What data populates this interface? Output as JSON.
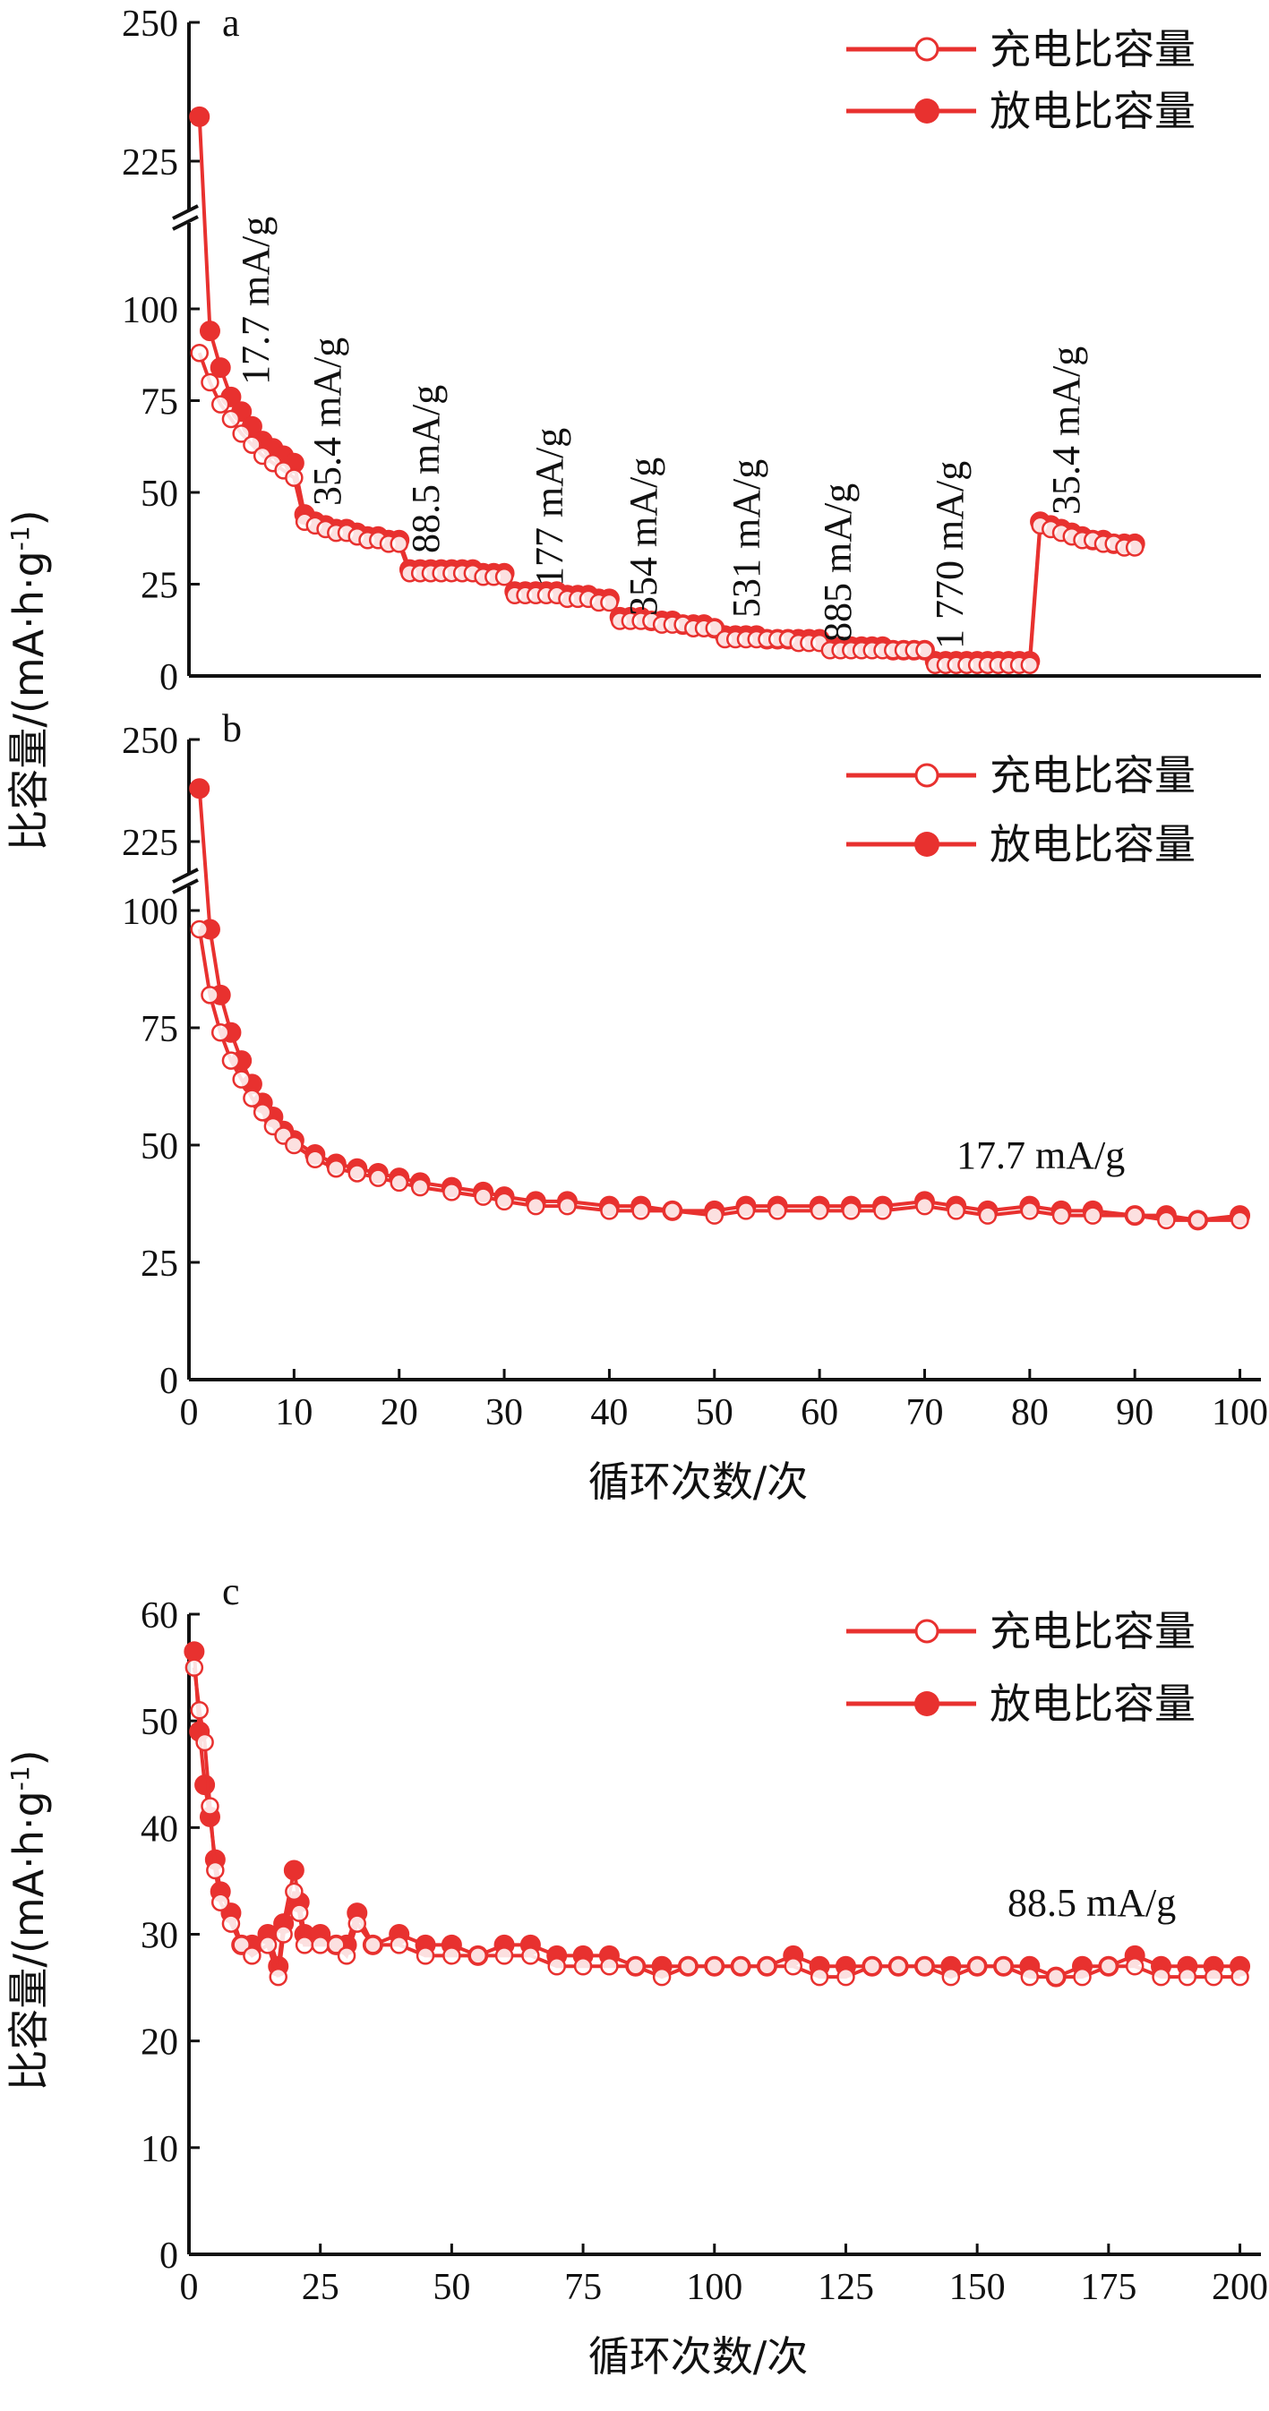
{
  "colors": {
    "series": "#e8312f",
    "axis": "#111111",
    "open_fill": "#ffffff"
  },
  "y_axis_title_top": "比容量/(mA·h·g",
  "y_axis_title_sup": "-1",
  "y_axis_title_close": ")",
  "chart_data": [
    {
      "id": "a",
      "type": "line",
      "panel_label": "a",
      "ylim": [
        0,
        250
      ],
      "y_break": [
        100,
        225
      ],
      "yticks": [
        0,
        25,
        50,
        75,
        100,
        225,
        250
      ],
      "xlim": [
        0,
        102
      ],
      "show_xticks": false,
      "legend": [
        "充电比容量",
        "放电比容量"
      ],
      "annotations": [
        "17.7 mA/g",
        "35.4 mA/g",
        "88.5 mA/g",
        "177 mA/g",
        "354 mA/g",
        "531 mA/g",
        "885 mA/g",
        "1 770 mA/g",
        "35.4 mA/g"
      ],
      "annotation_x": [
        10,
        18,
        25,
        35,
        44,
        53,
        62,
        74,
        86
      ],
      "series": [
        {
          "name": "放电比容量",
          "marker": "filled",
          "x": [
            1,
            2,
            3,
            4,
            5,
            6,
            7,
            8,
            9,
            10,
            11,
            12,
            13,
            14,
            15,
            16,
            17,
            18,
            19,
            20,
            21,
            22,
            23,
            24,
            25,
            26,
            27,
            28,
            29,
            30,
            31,
            32,
            33,
            34,
            35,
            36,
            37,
            38,
            39,
            40,
            41,
            42,
            43,
            44,
            45,
            46,
            47,
            48,
            49,
            50,
            51,
            52,
            53,
            54,
            55,
            56,
            57,
            58,
            59,
            60,
            61,
            62,
            63,
            64,
            65,
            66,
            67,
            68,
            69,
            70,
            71,
            72,
            73,
            74,
            75,
            76,
            77,
            78,
            79,
            80,
            81,
            82,
            83,
            84,
            85,
            86,
            87,
            88,
            89,
            90
          ],
          "y": [
            233,
            94,
            84,
            76,
            72,
            68,
            64,
            62,
            60,
            58,
            44,
            42,
            41,
            40,
            40,
            39,
            38,
            38,
            37,
            37,
            29,
            29,
            29,
            29,
            29,
            29,
            29,
            28,
            28,
            28,
            23,
            23,
            23,
            23,
            23,
            22,
            22,
            22,
            21,
            21,
            16,
            16,
            16,
            15,
            15,
            15,
            14,
            14,
            14,
            13,
            11,
            11,
            11,
            11,
            10,
            10,
            10,
            10,
            10,
            10,
            8,
            8,
            8,
            8,
            8,
            8,
            7,
            7,
            7,
            7,
            4,
            4,
            4,
            4,
            4,
            4,
            4,
            4,
            4,
            4,
            42,
            41,
            40,
            39,
            38,
            37,
            37,
            36,
            36,
            36
          ]
        },
        {
          "name": "充电比容量",
          "marker": "open",
          "x": [
            1,
            2,
            3,
            4,
            5,
            6,
            7,
            8,
            9,
            10,
            11,
            12,
            13,
            14,
            15,
            16,
            17,
            18,
            19,
            20,
            21,
            22,
            23,
            24,
            25,
            26,
            27,
            28,
            29,
            30,
            31,
            32,
            33,
            34,
            35,
            36,
            37,
            38,
            39,
            40,
            41,
            42,
            43,
            44,
            45,
            46,
            47,
            48,
            49,
            50,
            51,
            52,
            53,
            54,
            55,
            56,
            57,
            58,
            59,
            60,
            61,
            62,
            63,
            64,
            65,
            66,
            67,
            68,
            69,
            70,
            71,
            72,
            73,
            74,
            75,
            76,
            77,
            78,
            79,
            80,
            81,
            82,
            83,
            84,
            85,
            86,
            87,
            88,
            89,
            90
          ],
          "y": [
            88,
            80,
            74,
            70,
            66,
            63,
            60,
            58,
            56,
            54,
            42,
            41,
            40,
            39,
            39,
            38,
            37,
            37,
            36,
            36,
            28,
            28,
            28,
            28,
            28,
            28,
            28,
            27,
            27,
            27,
            22,
            22,
            22,
            22,
            22,
            21,
            21,
            21,
            20,
            20,
            15,
            15,
            15,
            15,
            14,
            14,
            14,
            13,
            13,
            13,
            10,
            10,
            10,
            10,
            10,
            10,
            10,
            9,
            9,
            9,
            7,
            7,
            7,
            7,
            7,
            7,
            7,
            7,
            7,
            7,
            3,
            3,
            3,
            3,
            3,
            3,
            3,
            3,
            3,
            3,
            41,
            40,
            39,
            38,
            37,
            37,
            36,
            36,
            35,
            35
          ]
        }
      ]
    },
    {
      "id": "b",
      "type": "line",
      "panel_label": "b",
      "ylim": [
        0,
        250
      ],
      "y_break": [
        100,
        225
      ],
      "yticks": [
        0,
        25,
        50,
        75,
        100,
        225,
        250
      ],
      "xlim": [
        0,
        102
      ],
      "xticks": [
        0,
        10,
        20,
        30,
        40,
        50,
        60,
        70,
        80,
        90,
        100
      ],
      "show_xticks": true,
      "xlabel": "循环次数/次",
      "legend": [
        "充电比容量",
        "放电比容量"
      ],
      "annotations": [
        "17.7 mA/g"
      ],
      "annotation_x": [
        80
      ],
      "annotation_y": [
        57
      ],
      "series": [
        {
          "name": "放电比容量",
          "marker": "filled",
          "x": [
            1,
            2,
            3,
            4,
            5,
            6,
            7,
            8,
            9,
            10,
            12,
            14,
            16,
            18,
            20,
            22,
            25,
            28,
            30,
            33,
            36,
            40,
            43,
            46,
            50,
            53,
            56,
            60,
            63,
            66,
            70,
            73,
            76,
            80,
            83,
            86,
            90,
            93,
            96,
            100
          ],
          "y": [
            238,
            96,
            82,
            74,
            68,
            63,
            59,
            56,
            53,
            51,
            48,
            46,
            45,
            44,
            43,
            42,
            41,
            40,
            39,
            38,
            38,
            37,
            37,
            36,
            36,
            37,
            37,
            37,
            37,
            37,
            38,
            37,
            36,
            37,
            36,
            36,
            35,
            35,
            34,
            35
          ]
        },
        {
          "name": "充电比容量",
          "marker": "open",
          "x": [
            1,
            2,
            3,
            4,
            5,
            6,
            7,
            8,
            9,
            10,
            12,
            14,
            16,
            18,
            20,
            22,
            25,
            28,
            30,
            33,
            36,
            40,
            43,
            46,
            50,
            53,
            56,
            60,
            63,
            66,
            70,
            73,
            76,
            80,
            83,
            86,
            90,
            93,
            96,
            100
          ],
          "y": [
            96,
            82,
            74,
            68,
            64,
            60,
            57,
            54,
            52,
            50,
            47,
            45,
            44,
            43,
            42,
            41,
            40,
            39,
            38,
            37,
            37,
            36,
            36,
            36,
            35,
            36,
            36,
            36,
            36,
            36,
            37,
            36,
            35,
            36,
            35,
            35,
            35,
            34,
            34,
            34
          ]
        }
      ]
    },
    {
      "id": "c",
      "type": "line",
      "panel_label": "c",
      "ylim": [
        0,
        60
      ],
      "yticks": [
        0,
        10,
        20,
        30,
        40,
        50,
        60
      ],
      "xlim": [
        0,
        204
      ],
      "xticks": [
        0,
        25,
        50,
        75,
        100,
        125,
        150,
        175,
        200
      ],
      "show_xticks": true,
      "xlabel": "循环次数/次",
      "legend": [
        "充电比容量",
        "放电比容量"
      ],
      "annotations": [
        "88.5 mA/g"
      ],
      "annotation_x": [
        162
      ],
      "annotation_y": [
        32.5
      ],
      "series": [
        {
          "name": "放电比容量",
          "marker": "filled",
          "x": [
            1,
            2,
            3,
            4,
            5,
            6,
            8,
            10,
            12,
            15,
            17,
            18,
            20,
            21,
            22,
            25,
            28,
            30,
            32,
            35,
            40,
            45,
            50,
            55,
            60,
            65,
            70,
            75,
            80,
            85,
            90,
            95,
            100,
            105,
            110,
            115,
            120,
            125,
            130,
            135,
            140,
            145,
            150,
            155,
            160,
            165,
            170,
            175,
            180,
            185,
            190,
            195,
            200
          ],
          "y": [
            56.5,
            49,
            44,
            41,
            37,
            34,
            32,
            29,
            29,
            30,
            27,
            31,
            36,
            33,
            30,
            30,
            29,
            29,
            32,
            29,
            30,
            29,
            29,
            28,
            29,
            29,
            28,
            28,
            28,
            27,
            27,
            27,
            27,
            27,
            27,
            28,
            27,
            27,
            27,
            27,
            27,
            27,
            27,
            27,
            27,
            26,
            27,
            27,
            28,
            27,
            27,
            27,
            27
          ]
        },
        {
          "name": "充电比容量",
          "marker": "open",
          "x": [
            1,
            2,
            3,
            4,
            5,
            6,
            8,
            10,
            12,
            15,
            17,
            18,
            20,
            21,
            22,
            25,
            28,
            30,
            32,
            35,
            40,
            45,
            50,
            55,
            60,
            65,
            70,
            75,
            80,
            85,
            90,
            95,
            100,
            105,
            110,
            115,
            120,
            125,
            130,
            135,
            140,
            145,
            150,
            155,
            160,
            165,
            170,
            175,
            180,
            185,
            190,
            195,
            200
          ],
          "y": [
            55,
            51,
            48,
            42,
            36,
            33,
            31,
            29,
            28,
            29,
            26,
            30,
            34,
            32,
            29,
            29,
            29,
            28,
            31,
            29,
            29,
            28,
            28,
            28,
            28,
            28,
            27,
            27,
            27,
            27,
            26,
            27,
            27,
            27,
            27,
            27,
            26,
            26,
            27,
            27,
            27,
            26,
            27,
            27,
            26,
            26,
            26,
            27,
            27,
            26,
            26,
            26,
            26
          ]
        }
      ]
    }
  ]
}
